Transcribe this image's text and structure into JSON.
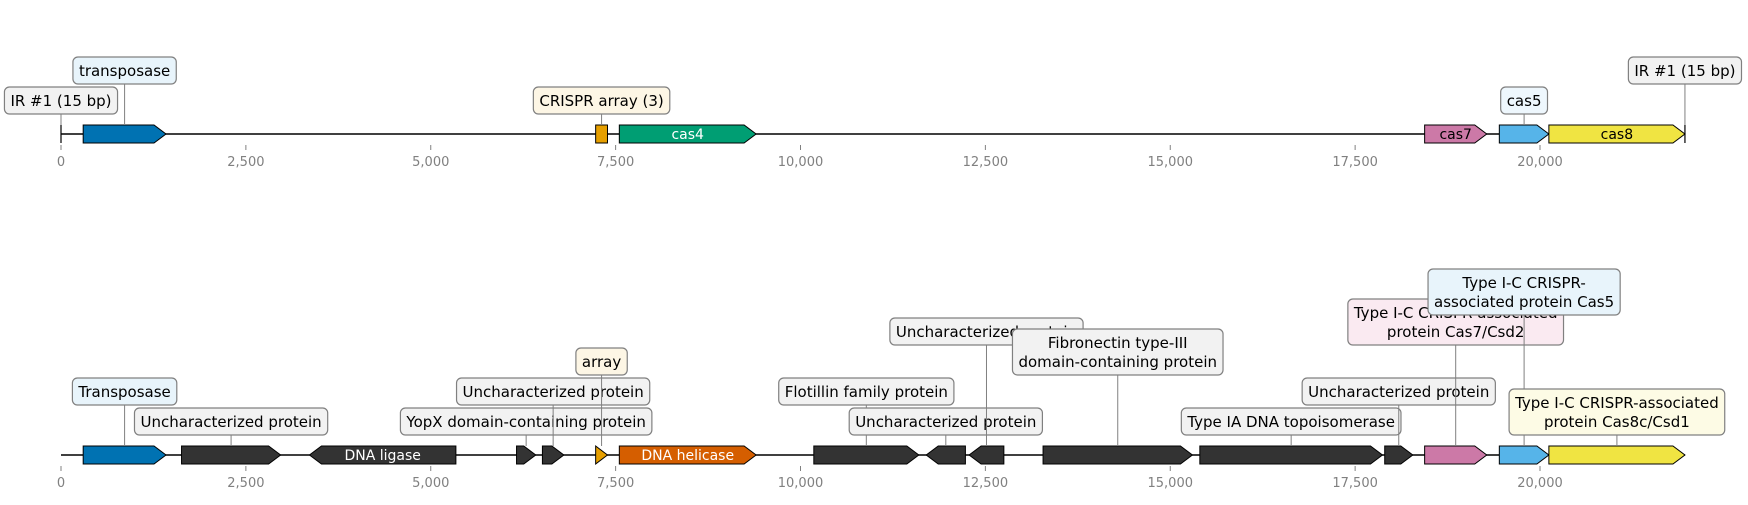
{
  "colors": {
    "backbone": "#000000",
    "tick_text": "#808080",
    "leader": "#808080",
    "box_stroke": "#808080",
    "gene_stroke": "#000000",
    "transposase": "#0072B2",
    "crispr_array": "#E69F00",
    "cas4": "#009E73",
    "cas7": "#CC79A7",
    "cas5": "#56B4E9",
    "cas8": "#F0E442",
    "other": "#333333",
    "helicase": "#D55E00",
    "ir": "#000000"
  },
  "tracks": [
    {
      "name": "top-track",
      "ticks": [
        "0",
        "2,500",
        "5,000",
        "7,500",
        "10,000",
        "12,500",
        "15,000",
        "17,500",
        "20,000"
      ],
      "features": [
        {
          "name": "ir-left",
          "start": 0,
          "end": 0,
          "strand": 0,
          "kind": "ir",
          "color_key": "ir",
          "label": "IR #1 (15 bp)",
          "box_fill": "#f2f2f2",
          "level": 1,
          "inner_label": ""
        },
        {
          "name": "transposase",
          "start": 300,
          "end": 1420,
          "strand": 1,
          "kind": "gene",
          "color_key": "transposase",
          "label": "transposase",
          "box_fill": "#e8f4fb",
          "level": 2,
          "inner_label": ""
        },
        {
          "name": "crispr-array",
          "start": 7230,
          "end": 7390,
          "strand": 0,
          "kind": "box",
          "color_key": "crispr_array",
          "label": "CRISPR array (3)",
          "box_fill": "#fdf6e5",
          "level": 1,
          "inner_label": ""
        },
        {
          "name": "cas4",
          "start": 7550,
          "end": 9400,
          "strand": 1,
          "kind": "gene",
          "color_key": "cas4",
          "label": "",
          "box_fill": "",
          "level": 0,
          "inner_label": "cas4"
        },
        {
          "name": "cas7",
          "start": 18440,
          "end": 19280,
          "strand": 1,
          "kind": "gene",
          "color_key": "cas7",
          "label": "",
          "box_fill": "",
          "level": 0,
          "inner_label": "cas7"
        },
        {
          "name": "cas5",
          "start": 19450,
          "end": 20120,
          "strand": 1,
          "kind": "gene",
          "color_key": "cas5",
          "label": "cas5",
          "box_fill": "#eef7fd",
          "level": 1,
          "inner_label": ""
        },
        {
          "name": "cas8",
          "start": 20120,
          "end": 21960,
          "strand": 1,
          "kind": "gene",
          "color_key": "cas8",
          "label": "",
          "box_fill": "",
          "level": 0,
          "inner_label": "cas8"
        },
        {
          "name": "ir-right",
          "start": 21960,
          "end": 21960,
          "strand": 0,
          "kind": "ir",
          "color_key": "ir",
          "label": "IR #1 (15 bp)",
          "box_fill": "#f2f2f2",
          "level": 2,
          "inner_label": ""
        }
      ]
    },
    {
      "name": "bottom-track",
      "ticks": [
        "0",
        "2,500",
        "5,000",
        "7,500",
        "10,000",
        "12,500",
        "15,000",
        "17,500",
        "20,000"
      ],
      "features": [
        {
          "name": "transposase",
          "start": 300,
          "end": 1420,
          "strand": 1,
          "kind": "gene",
          "color_key": "transposase",
          "label": "Transposase",
          "box_fill": "#e8f4fb",
          "level": 2,
          "inner_label": ""
        },
        {
          "name": "uncharacterized-1",
          "start": 1630,
          "end": 2970,
          "strand": 1,
          "kind": "gene",
          "color_key": "other",
          "label": "Uncharacterized protein",
          "box_fill": "#f2f2f2",
          "level": 1,
          "inner_label": ""
        },
        {
          "name": "dna-ligase",
          "start": 3360,
          "end": 5340,
          "strand": -1,
          "kind": "gene",
          "color_key": "other",
          "label": "",
          "box_fill": "",
          "level": 0,
          "inner_label": "DNA ligase"
        },
        {
          "name": "yopx",
          "start": 6160,
          "end": 6420,
          "strand": 1,
          "kind": "gene",
          "color_key": "other",
          "label": "YopX domain-containing protein",
          "box_fill": "#f2f2f2",
          "level": 1,
          "inner_label": ""
        },
        {
          "name": "uncharacterized-2",
          "start": 6510,
          "end": 6800,
          "strand": 1,
          "kind": "gene",
          "color_key": "other",
          "label": "Uncharacterized protein",
          "box_fill": "#f2f2f2",
          "level": 2,
          "inner_label": ""
        },
        {
          "name": "array",
          "start": 7230,
          "end": 7390,
          "strand": 1,
          "kind": "gene",
          "color_key": "crispr_array",
          "label": "array",
          "box_fill": "#fdf6e5",
          "level": 3,
          "inner_label": ""
        },
        {
          "name": "dna-helicase",
          "start": 7550,
          "end": 9400,
          "strand": 1,
          "kind": "gene",
          "color_key": "helicase",
          "label": "",
          "box_fill": "",
          "level": 0,
          "inner_label": "DNA helicase"
        },
        {
          "name": "flotillin",
          "start": 10180,
          "end": 11600,
          "strand": 1,
          "kind": "gene",
          "color_key": "other",
          "label": "Flotillin family protein",
          "box_fill": "#f2f2f2",
          "level": 2,
          "inner_label": ""
        },
        {
          "name": "uncharacterized-3",
          "start": 11700,
          "end": 12230,
          "strand": -1,
          "kind": "gene",
          "color_key": "other",
          "label": "Uncharacterized protein",
          "box_fill": "#f2f2f2",
          "level": 1,
          "inner_label": ""
        },
        {
          "name": "uncharacterized-4",
          "start": 12280,
          "end": 12750,
          "strand": -1,
          "kind": "gene",
          "color_key": "other",
          "label": "Uncharacterized protein",
          "box_fill": "#f2f2f2",
          "level": 4,
          "inner_label": ""
        },
        {
          "name": "fibronectin",
          "start": 13280,
          "end": 15300,
          "strand": 1,
          "kind": "gene",
          "color_key": "other",
          "label": "Fibronectin type-III\ndomain-containing protein",
          "box_fill": "#f2f2f2",
          "level": 3,
          "inner_label": ""
        },
        {
          "name": "topoisomerase",
          "start": 15400,
          "end": 17870,
          "strand": 1,
          "kind": "gene",
          "color_key": "other",
          "label": "Type IA DNA topoisomerase",
          "box_fill": "#f2f2f2",
          "level": 1,
          "inner_label": ""
        },
        {
          "name": "uncharacterized-5",
          "start": 17900,
          "end": 18280,
          "strand": 1,
          "kind": "gene",
          "color_key": "other",
          "label": "Uncharacterized protein",
          "box_fill": "#f2f2f2",
          "level": 2,
          "inner_label": ""
        },
        {
          "name": "cas7-csd2",
          "start": 18440,
          "end": 19280,
          "strand": 1,
          "kind": "gene",
          "color_key": "cas7",
          "label": "Type I-C CRISPR-associated\nprotein Cas7/Csd2",
          "box_fill": "#faeaf1",
          "level": 4,
          "inner_label": ""
        },
        {
          "name": "cas5",
          "start": 19450,
          "end": 20120,
          "strand": 1,
          "kind": "gene",
          "color_key": "cas5",
          "label": "Type I-C CRISPR-\nassociated protein Cas5",
          "box_fill": "#e8f4fb",
          "level": 5,
          "inner_label": ""
        },
        {
          "name": "cas8c-csd1",
          "start": 20120,
          "end": 21960,
          "strand": 1,
          "kind": "gene",
          "color_key": "cas8",
          "label": "Type I-C CRISPR-associated\nprotein Cas8c/Csd1",
          "box_fill": "#fdfbe5",
          "level": 1,
          "inner_label": ""
        }
      ]
    }
  ]
}
